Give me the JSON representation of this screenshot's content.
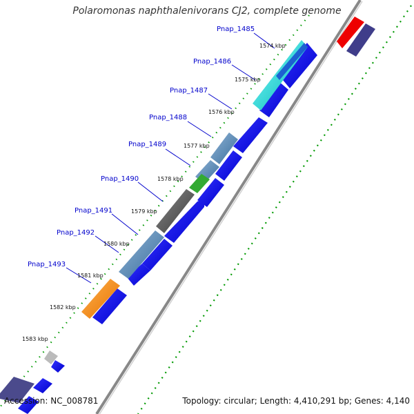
{
  "title": "Polaromonas naphthalenivorans CJ2, complete genome",
  "footer": {
    "accession": "Accession: NC_008781",
    "summary": "Topology: circular; Length: 4,410,291 bp; Genes: 4,140"
  },
  "gene_labels": [
    "Pnap_1485",
    "Pnap_1486",
    "Pnap_1487",
    "Pnap_1488",
    "Pnap_1489",
    "Pnap_1490",
    "Pnap_1491",
    "Pnap_1492",
    "Pnap_1493"
  ],
  "kbp_labels": [
    "1574 kbp",
    "1575 kbp",
    "1576 kbp",
    "1577 kbp",
    "1578 kbp",
    "1579 kbp",
    "1580 kbp",
    "1581 kbp",
    "1582 kbp",
    "1583 kbp"
  ],
  "colors": {
    "backbone": "#888888",
    "cds_reverse": "#0000ee",
    "gc_dots": "#009900",
    "label_line": "#0000cc",
    "feature_cyan": "#00cccc",
    "feature_steelblue": "#4682b4",
    "feature_green": "#33aa33",
    "feature_gray": "#555555",
    "feature_orange": "#ff8800",
    "feature_red": "#ee0000",
    "feature_slate": "#3f3d8a",
    "feature_silver": "#bbbbbb"
  }
}
